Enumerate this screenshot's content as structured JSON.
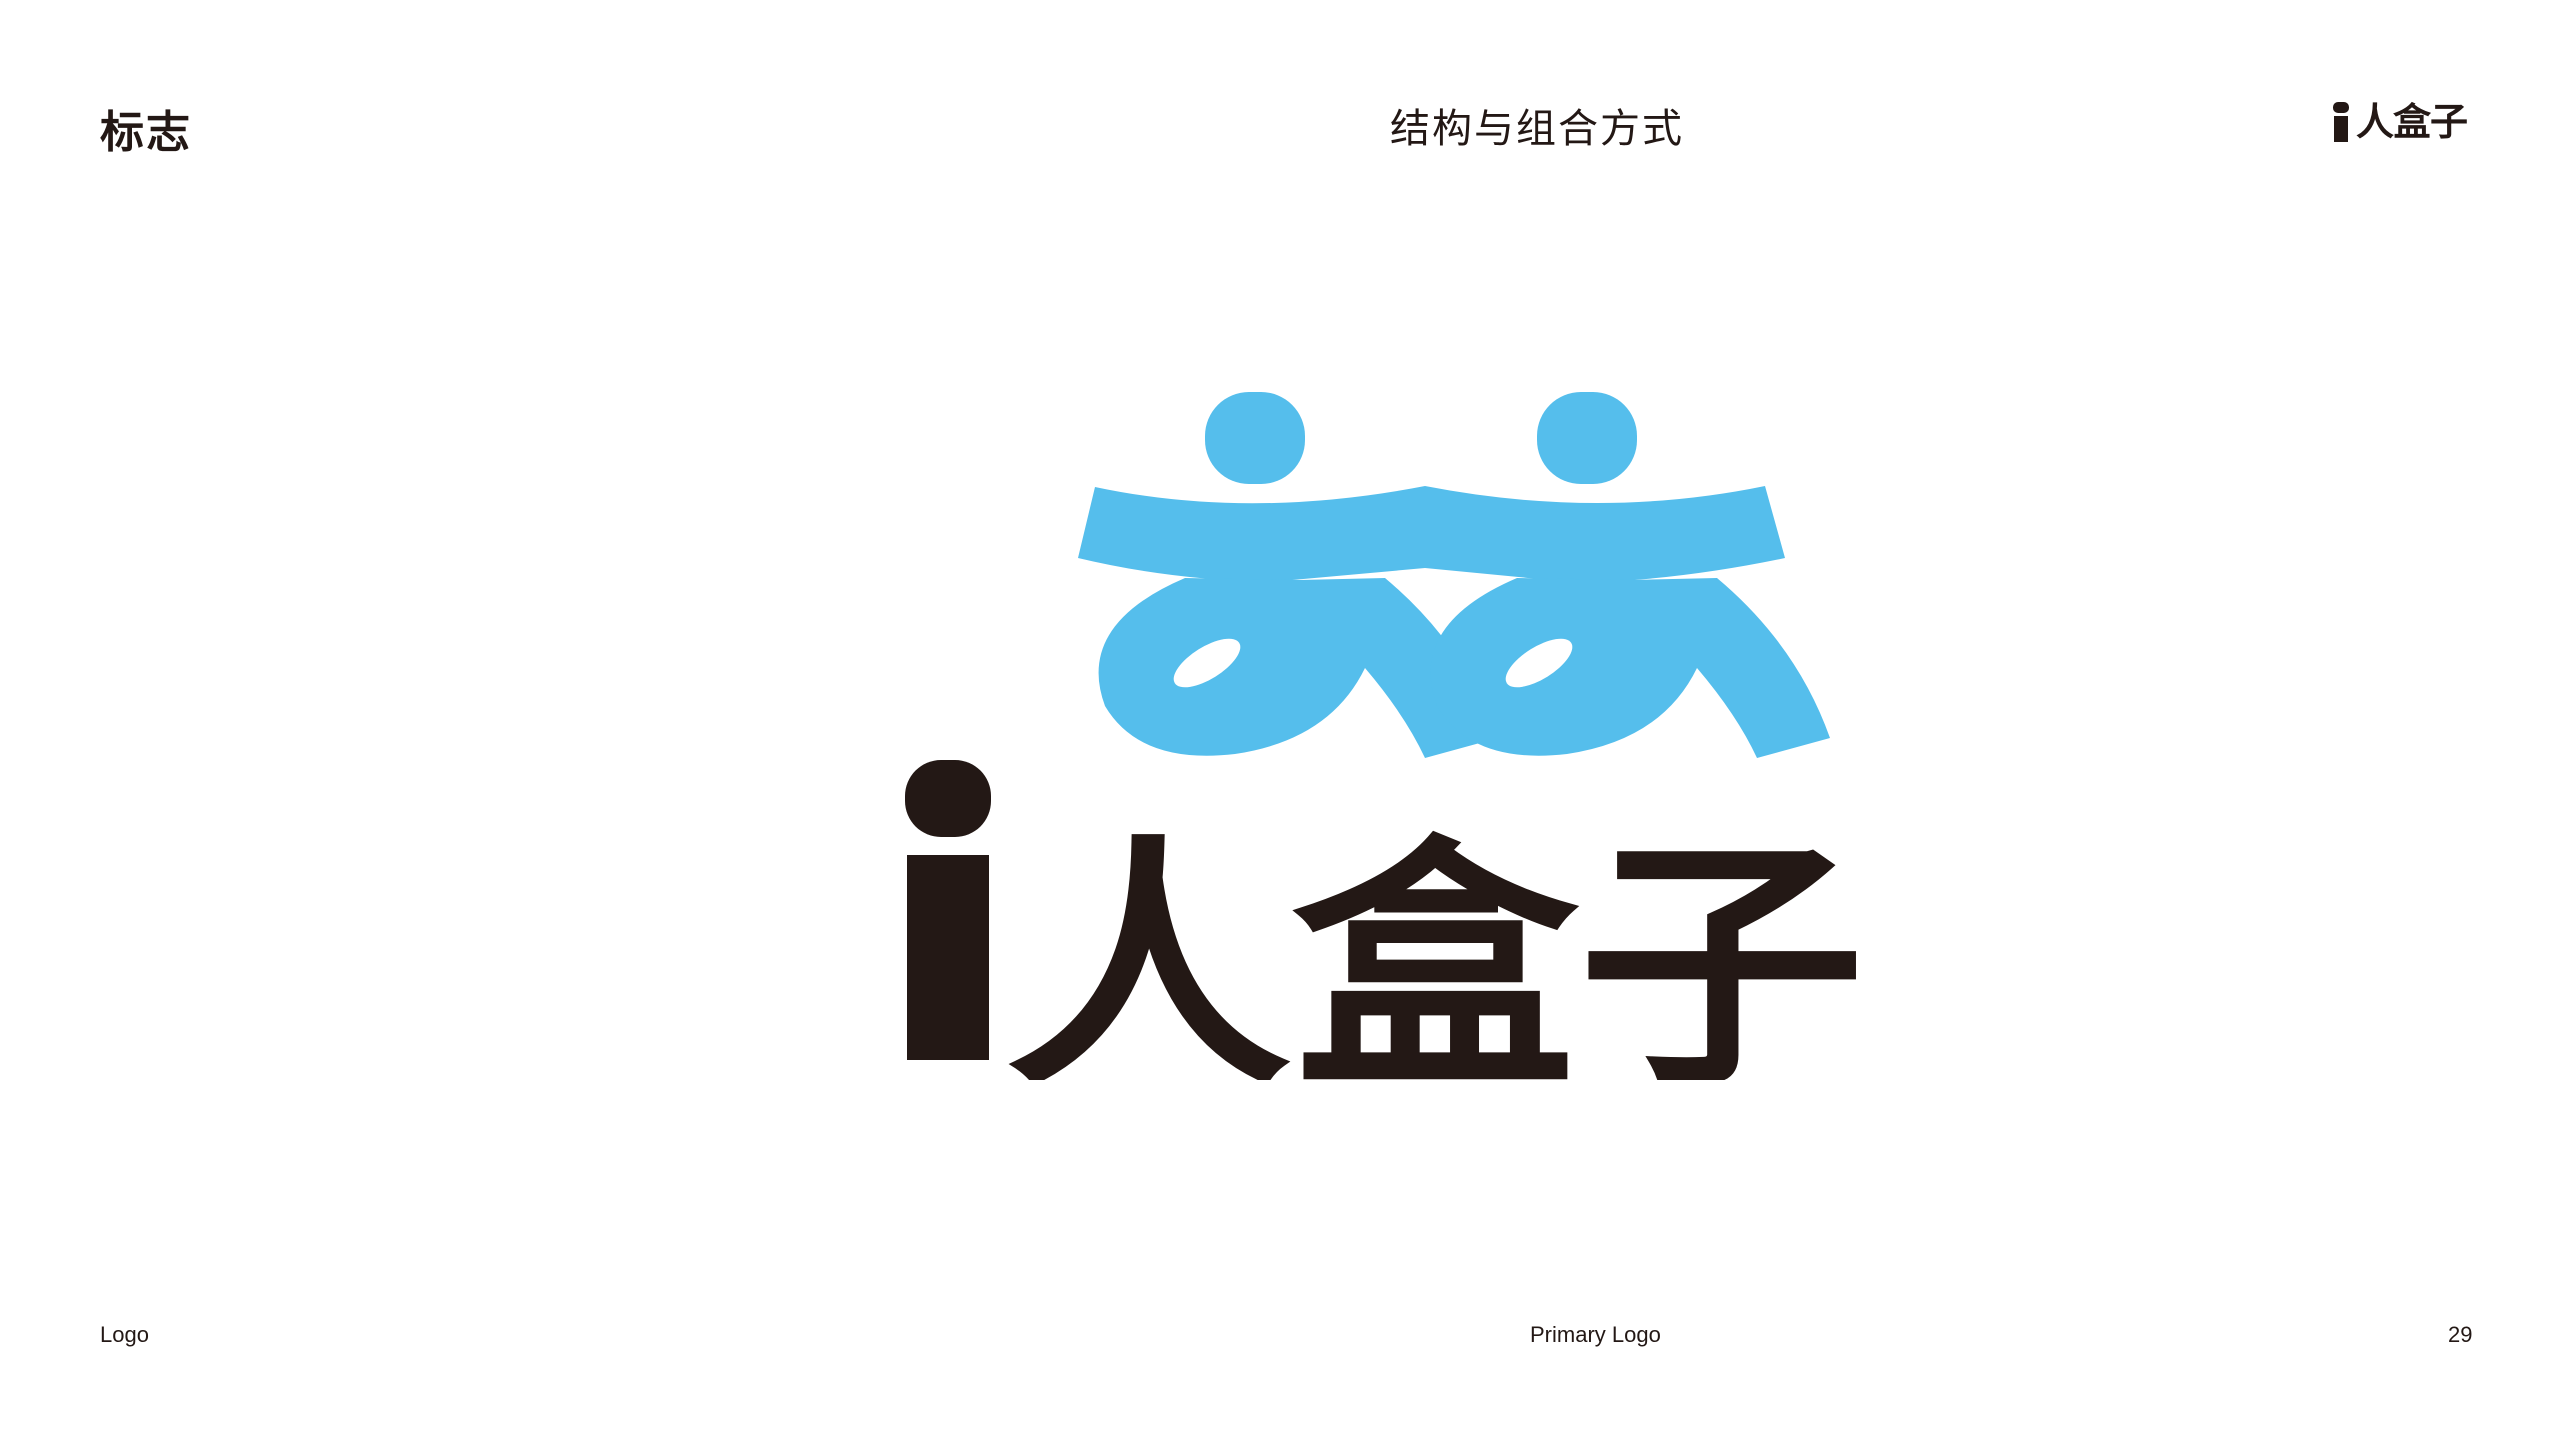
{
  "header": {
    "section": "标志",
    "title": "结构与组合方式",
    "brand_mark_text": "人盒子"
  },
  "logo": {
    "wordmark_text": "i人盒子",
    "colors": {
      "figure_blue": "#55BEEC",
      "text_black": "#231815"
    }
  },
  "footer": {
    "left": "Logo",
    "center": "Primary Logo",
    "page_number": "29"
  }
}
